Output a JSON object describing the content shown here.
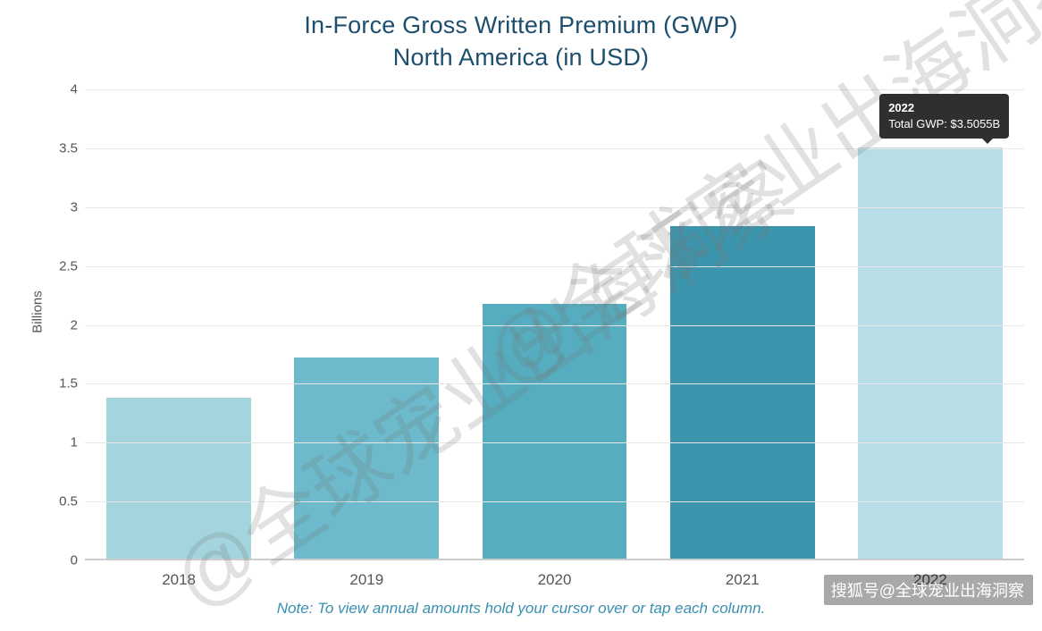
{
  "chart": {
    "type": "bar",
    "title_line1": "In-Force Gross Written Premium (GWP)",
    "title_line2": "North America (in USD)",
    "title_color": "#1d4e6e",
    "title_fontsize": 27,
    "ylabel": "Billions",
    "ylabel_fontsize": 15,
    "ylim": [
      0,
      4
    ],
    "ytick_step": 0.5,
    "yticks": [
      "0",
      "0.5",
      "1",
      "1.5",
      "2",
      "2.5",
      "3",
      "3.5",
      "4"
    ],
    "grid_color": "#e6e6e6",
    "baseline_color": "#cccccc",
    "background_color": "#ffffff",
    "axis_text_color": "#555555",
    "categories": [
      "2018",
      "2019",
      "2020",
      "2021",
      "2022"
    ],
    "values": [
      1.38,
      1.72,
      2.18,
      2.84,
      3.5055
    ],
    "bar_colors": [
      "#a4d5de",
      "#6cbacb",
      "#55adbf",
      "#3b95ac",
      "#b7dee7"
    ],
    "bar_width": 0.77,
    "highlighted_index": 4,
    "tooltip": {
      "year": "2022",
      "line2": "Total GWP: $3.5055B",
      "background": "#2f2f2f",
      "text_color": "#ffffff",
      "fontsize": 13
    },
    "footnote": "Note: To view annual amounts hold your cursor over or tap each column.",
    "footnote_color": "#3a8fb0",
    "footnote_fontsize": 17
  },
  "watermarks": {
    "diagonal_text": "@全球宠业出海洞察",
    "diagonal_color": "rgba(120,120,120,0.22)",
    "diagonal_fontsize": 90,
    "diagonal_rotation_deg": -34,
    "bottom_text": "搜狐号@全球宠业出海洞察",
    "bottom_background": "rgba(0,0,0,0.38)",
    "bottom_text_color": "#ffffff",
    "bottom_fontsize": 18
  }
}
